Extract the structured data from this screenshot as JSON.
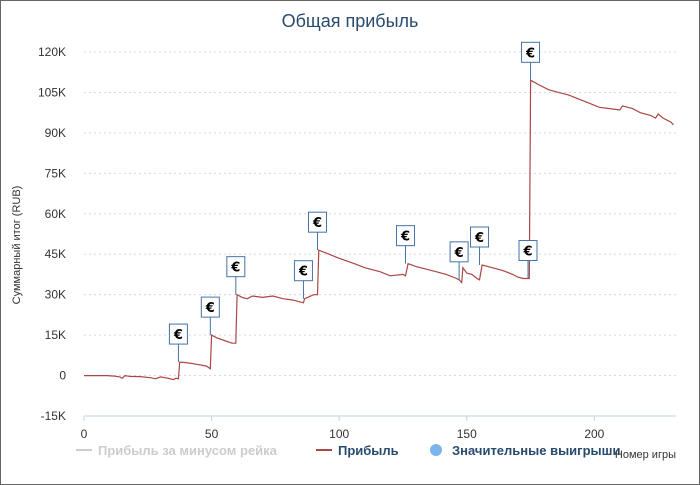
{
  "chart_data": {
    "type": "line",
    "title": "Общая прибыль",
    "xlabel": "Номер игры",
    "ylabel": "Суммарный итог (RUB)",
    "xlim": [
      0,
      232
    ],
    "ylim": [
      -15000,
      120000
    ],
    "x_ticks": [
      0,
      50,
      100,
      150,
      200
    ],
    "y_ticks": [
      -15000,
      0,
      15000,
      30000,
      45000,
      60000,
      75000,
      90000,
      105000,
      120000
    ],
    "y_tick_labels": [
      "-15K",
      "0",
      "15K",
      "30K",
      "45K",
      "60K",
      "75K",
      "90K",
      "105K",
      "120K"
    ],
    "grid": "horizontal dotted",
    "legend_position": "bottom",
    "series": [
      {
        "name": "Прибыль за минусом рейка",
        "color": "#cccccc",
        "values": []
      },
      {
        "name": "Прибыль",
        "color": "#aa4643",
        "points": [
          [
            0,
            0
          ],
          [
            3,
            0
          ],
          [
            6,
            0
          ],
          [
            9,
            0
          ],
          [
            12,
            -200
          ],
          [
            14,
            -500
          ],
          [
            15,
            -1000
          ],
          [
            16,
            0
          ],
          [
            18,
            -300
          ],
          [
            22,
            -400
          ],
          [
            26,
            -800
          ],
          [
            28,
            -1200
          ],
          [
            30,
            -500
          ],
          [
            33,
            -1000
          ],
          [
            35,
            -1500
          ],
          [
            36,
            -1000
          ],
          [
            37,
            -1200
          ],
          [
            37.5,
            5000
          ],
          [
            40,
            4800
          ],
          [
            44,
            4200
          ],
          [
            48,
            3500
          ],
          [
            49.5,
            2500
          ],
          [
            50,
            15000
          ],
          [
            52,
            14000
          ],
          [
            55,
            13000
          ],
          [
            58,
            12000
          ],
          [
            59.5,
            12000
          ],
          [
            60,
            30000
          ],
          [
            62,
            29000
          ],
          [
            64,
            28500
          ],
          [
            66,
            29500
          ],
          [
            70,
            29000
          ],
          [
            74,
            29500
          ],
          [
            78,
            28500
          ],
          [
            82,
            28000
          ],
          [
            86,
            27000
          ],
          [
            86.5,
            28500
          ],
          [
            90,
            30000
          ],
          [
            91.5,
            30000
          ],
          [
            92,
            46500
          ],
          [
            96,
            45000
          ],
          [
            100,
            43500
          ],
          [
            106,
            41500
          ],
          [
            110,
            40000
          ],
          [
            116,
            38500
          ],
          [
            120,
            37000
          ],
          [
            125,
            37500
          ],
          [
            126,
            37000
          ],
          [
            127,
            41500
          ],
          [
            130,
            40500
          ],
          [
            134,
            39500
          ],
          [
            138,
            38500
          ],
          [
            142,
            37500
          ],
          [
            146,
            36000
          ],
          [
            147,
            35500
          ],
          [
            148,
            34500
          ],
          [
            148.5,
            40000
          ],
          [
            150,
            38000
          ],
          [
            152,
            37500
          ],
          [
            154,
            36000
          ],
          [
            155,
            35500
          ],
          [
            156,
            41000
          ],
          [
            160,
            40000
          ],
          [
            164,
            39000
          ],
          [
            168,
            37500
          ],
          [
            170,
            36500
          ],
          [
            172,
            36000
          ],
          [
            174,
            36000
          ],
          [
            174.5,
            36000
          ],
          [
            175,
            109500
          ],
          [
            178,
            108000
          ],
          [
            182,
            106000
          ],
          [
            186,
            105000
          ],
          [
            190,
            104000
          ],
          [
            194,
            102500
          ],
          [
            198,
            101000
          ],
          [
            202,
            99500
          ],
          [
            206,
            99000
          ],
          [
            210,
            98500
          ],
          [
            211,
            100000
          ],
          [
            215,
            99000
          ],
          [
            218,
            97500
          ],
          [
            222,
            96500
          ],
          [
            224,
            95500
          ],
          [
            225,
            97000
          ],
          [
            227,
            95500
          ],
          [
            229,
            94500
          ],
          [
            230,
            94000
          ],
          [
            231,
            93000
          ]
        ]
      },
      {
        "name": "Значительные выигрыши",
        "color": "#7cb5ec",
        "symbol": "€",
        "points": [
          [
            37,
            5000
          ],
          [
            49.5,
            15000
          ],
          [
            59.5,
            30000
          ],
          [
            86,
            28500
          ],
          [
            91.5,
            46500
          ],
          [
            126,
            41500
          ],
          [
            147,
            35500
          ],
          [
            155,
            41000
          ],
          [
            174,
            36000
          ],
          [
            175,
            109500
          ]
        ]
      }
    ]
  },
  "colors": {
    "title": "#274b6d",
    "grid": "#d8d8d8",
    "flag_border": "#4572a7",
    "profit_line": "#aa4643",
    "rake_line": "#cccccc",
    "marker": "#7cb5ec"
  }
}
